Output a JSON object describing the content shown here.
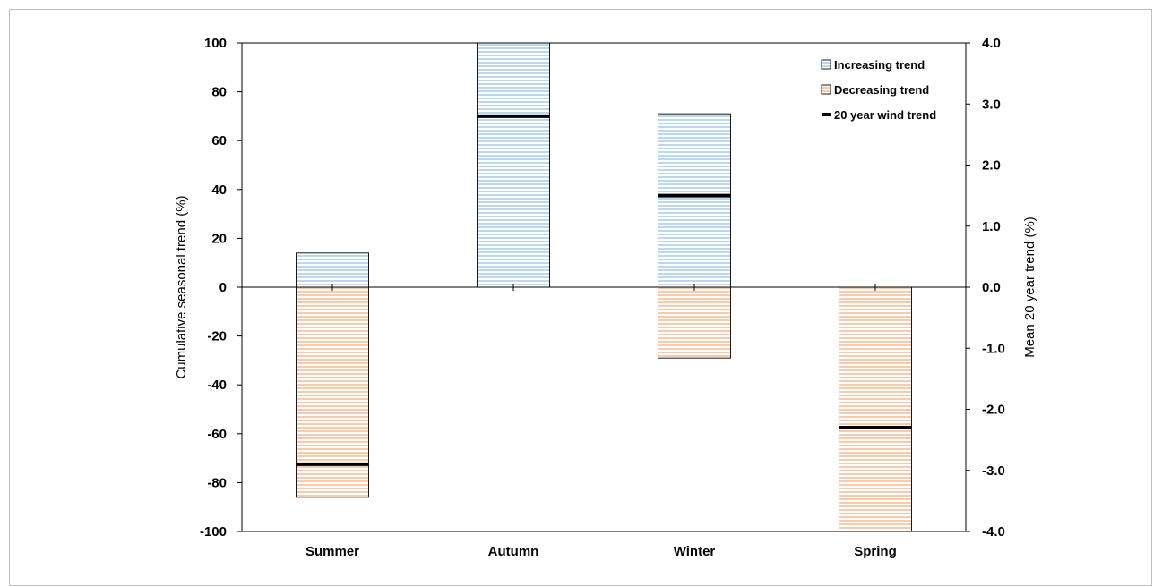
{
  "chart_data": {
    "type": "bar",
    "categories": [
      "Summer",
      "Autumn",
      "Winter",
      "Spring"
    ],
    "series": [
      {
        "name": "Increasing trend",
        "axis": "left",
        "color": "#bdd7ee",
        "values": [
          14,
          100,
          71,
          0
        ]
      },
      {
        "name": "Decreasing trend",
        "axis": "left",
        "color": "#f8cbad",
        "values": [
          -86,
          0,
          -29,
          -100
        ]
      },
      {
        "name": "20 year wind trend",
        "axis": "right",
        "color": "#000000",
        "values": [
          -2.9,
          2.8,
          1.5,
          -2.3
        ]
      }
    ],
    "ylabel": "Cumulative seasonal trend (%)",
    "ylim": [
      -100,
      100
    ],
    "yticks": [
      100,
      80,
      60,
      40,
      20,
      0,
      -20,
      -40,
      -60,
      -80,
      -100
    ],
    "y2label": "Mean 20 year trend (%)",
    "y2lim": [
      -4,
      4
    ],
    "y2ticks": [
      "4.0",
      "3.0",
      "2.0",
      "1.0",
      "0.0",
      "-1.0",
      "-2.0",
      "-3.0",
      "-4.0"
    ],
    "legend_position": "top-right",
    "grid": false
  }
}
